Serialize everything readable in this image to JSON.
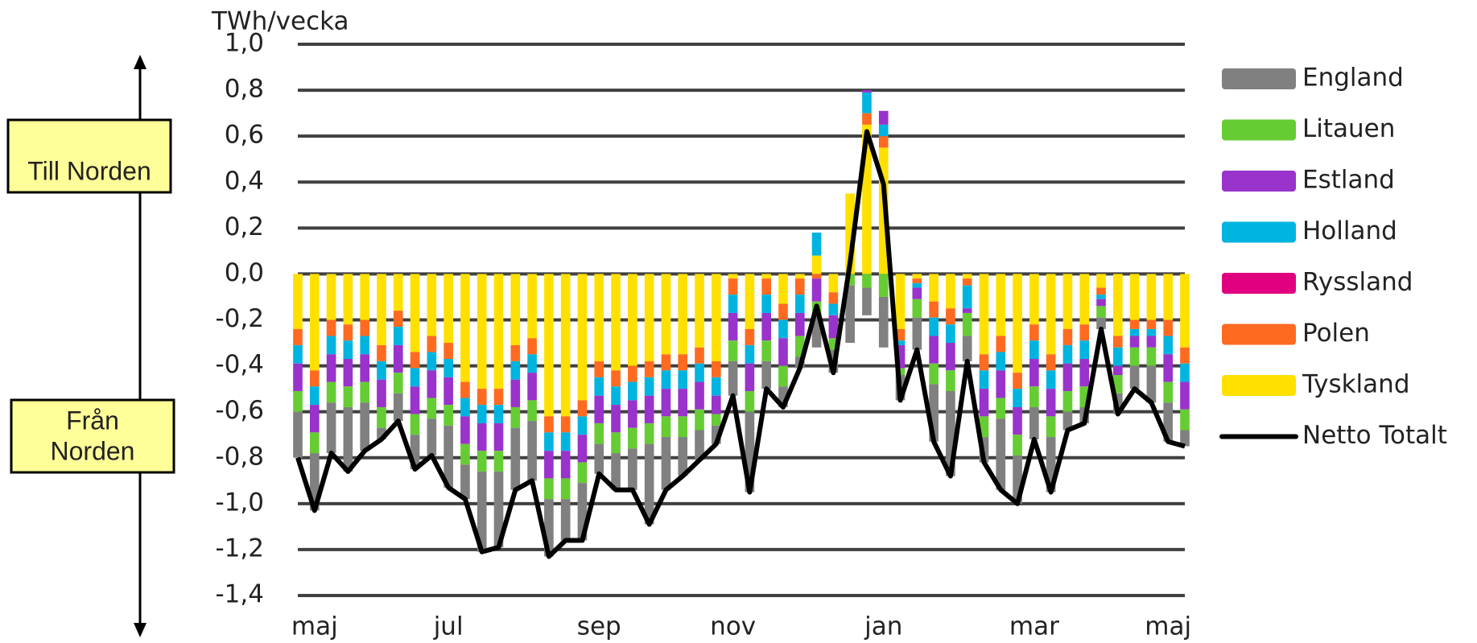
{
  "chart_data": {
    "type": "stacked_bar_line",
    "y_axis_label": "TWh/vecka",
    "annotations": {
      "up": "Till Norden",
      "down": [
        "Från",
        "Norden"
      ]
    },
    "categories": [
      null,
      "maj",
      null,
      null,
      null,
      null,
      null,
      null,
      null,
      "jul",
      null,
      null,
      null,
      null,
      null,
      null,
      null,
      null,
      "sep",
      null,
      null,
      null,
      null,
      null,
      null,
      null,
      "nov",
      null,
      null,
      null,
      null,
      null,
      null,
      null,
      null,
      "jan",
      null,
      null,
      null,
      null,
      null,
      null,
      null,
      null,
      "mar",
      null,
      null,
      null,
      null,
      null,
      null,
      null,
      "maj",
      null
    ],
    "ylim": [
      -1.4,
      1.0
    ],
    "yticks": [
      {
        "value": 1.0,
        "label": "1,0"
      },
      {
        "value": 0.8,
        "label": "0,8"
      },
      {
        "value": 0.6,
        "label": "0,6"
      },
      {
        "value": 0.4,
        "label": "0,4"
      },
      {
        "value": 0.2,
        "label": "0,2"
      },
      {
        "value": 0,
        "label": "0,0"
      },
      {
        "value": -0.2,
        "label": "-0,2"
      },
      {
        "value": -0.4,
        "label": "-0,4"
      },
      {
        "value": -0.6,
        "label": "-0,6"
      },
      {
        "value": -0.8,
        "label": "-0,8"
      },
      {
        "value": -1.0,
        "label": "-1,0"
      },
      {
        "value": -1.2,
        "label": "-1,2"
      },
      {
        "value": -1.4,
        "label": "-1,4"
      }
    ],
    "grid": true,
    "legend": "right",
    "series": [
      {
        "name": "England",
        "color": "#808080",
        "values": [
          -0.2,
          -0.25,
          -0.22,
          -0.28,
          -0.21,
          -0.05,
          -0.12,
          -0.15,
          -0.16,
          -0.27,
          -0.15,
          -0.35,
          -0.33,
          -0.27,
          -0.26,
          -0.25,
          -0.18,
          -0.25,
          -0.13,
          -0.16,
          -0.18,
          -0.35,
          -0.23,
          -0.17,
          -0.13,
          -0.08,
          -0.15,
          -0.35,
          -0.12,
          -0.09,
          -0.05,
          -0.15,
          -0.1,
          -0.25,
          -0.12,
          -0.22,
          -0.11,
          -0.14,
          -0.25,
          -0.37,
          -0.11,
          -0.11,
          -0.31,
          -0.21,
          -0.14,
          -0.24,
          -0.08,
          -0.07,
          -0.05,
          -0.09,
          -0.1,
          -0.16,
          -0.17,
          -0.07
        ]
      },
      {
        "name": "Litauen",
        "color": "#66cc33",
        "values": [
          -0.09,
          -0.09,
          -0.09,
          -0.09,
          -0.09,
          -0.09,
          -0.09,
          -0.09,
          -0.09,
          -0.09,
          -0.09,
          -0.09,
          -0.09,
          -0.09,
          -0.09,
          -0.09,
          -0.09,
          -0.09,
          -0.09,
          -0.09,
          -0.09,
          -0.09,
          -0.09,
          -0.09,
          -0.09,
          -0.05,
          -0.09,
          -0.09,
          -0.09,
          -0.09,
          -0.09,
          -0.05,
          -0.05,
          -0.05,
          -0.06,
          -0.1,
          -0.03,
          -0.08,
          -0.09,
          -0.09,
          -0.1,
          -0.09,
          -0.09,
          -0.09,
          -0.09,
          -0.09,
          -0.09,
          -0.09,
          -0.05,
          -0.08,
          -0.08,
          -0.08,
          -0.09,
          -0.09
        ]
      },
      {
        "name": "Estland",
        "color": "#9933cc",
        "values": [
          -0.12,
          -0.12,
          -0.12,
          -0.12,
          -0.12,
          -0.12,
          -0.12,
          -0.12,
          -0.12,
          -0.12,
          -0.12,
          -0.12,
          -0.12,
          -0.12,
          -0.12,
          -0.12,
          -0.12,
          -0.12,
          -0.12,
          -0.12,
          -0.12,
          -0.12,
          -0.12,
          -0.12,
          -0.12,
          -0.08,
          -0.12,
          -0.12,
          -0.12,
          -0.12,
          -0.1,
          -0.1,
          -0.1,
          0,
          0.01,
          0.06,
          -0.1,
          -0.05,
          -0.12,
          -0.12,
          -0.02,
          -0.12,
          -0.12,
          -0.12,
          -0.12,
          -0.12,
          -0.12,
          -0.12,
          -0.03,
          -0.04,
          -0.05,
          -0.05,
          -0.12,
          -0.12
        ]
      },
      {
        "name": "Holland",
        "color": "#00b4e0",
        "values": [
          -0.08,
          -0.08,
          -0.08,
          -0.08,
          -0.08,
          -0.08,
          -0.08,
          -0.08,
          -0.08,
          -0.08,
          -0.08,
          -0.08,
          -0.08,
          -0.08,
          -0.08,
          -0.08,
          -0.08,
          -0.08,
          -0.08,
          -0.08,
          -0.08,
          -0.08,
          -0.08,
          -0.08,
          -0.08,
          -0.08,
          -0.08,
          -0.08,
          -0.08,
          -0.08,
          -0.08,
          0.1,
          -0.05,
          0,
          0.09,
          0.05,
          -0.02,
          -0.02,
          -0.08,
          -0.08,
          -0.1,
          -0.08,
          -0.08,
          -0.08,
          -0.08,
          -0.08,
          -0.08,
          -0.08,
          -0.02,
          -0.08,
          -0.03,
          -0.03,
          -0.08,
          -0.08
        ]
      },
      {
        "name": "Ryssland",
        "color": "#e0007f",
        "values": [
          0,
          0,
          0,
          0,
          0,
          0,
          0,
          0,
          0,
          0,
          0,
          0,
          0,
          0,
          0,
          0,
          0,
          0,
          0,
          0,
          0,
          0,
          0,
          0,
          0,
          0,
          0,
          0,
          0,
          0,
          0,
          0,
          0,
          0,
          0,
          0,
          0,
          0,
          0,
          0,
          0,
          0,
          0,
          0,
          0,
          0,
          0,
          0,
          0,
          0,
          0,
          0,
          0,
          0
        ]
      },
      {
        "name": "Polen",
        "color": "#ff6a21",
        "values": [
          -0.07,
          -0.07,
          -0.07,
          -0.07,
          -0.07,
          -0.07,
          -0.07,
          -0.07,
          -0.07,
          -0.07,
          -0.07,
          -0.07,
          -0.07,
          -0.07,
          -0.07,
          -0.07,
          -0.07,
          -0.07,
          -0.07,
          -0.07,
          -0.07,
          -0.07,
          -0.07,
          -0.07,
          -0.07,
          -0.07,
          -0.07,
          -0.07,
          -0.07,
          -0.07,
          -0.07,
          -0.02,
          -0.05,
          0,
          0.05,
          0.05,
          -0.05,
          -0.02,
          -0.07,
          -0.07,
          -0.03,
          -0.07,
          -0.07,
          -0.07,
          -0.07,
          -0.07,
          -0.07,
          -0.07,
          -0.03,
          -0.05,
          -0.04,
          -0.04,
          -0.07,
          -0.07
        ]
      },
      {
        "name": "Tyskland",
        "color": "#ffe000",
        "values": [
          -0.24,
          -0.42,
          -0.2,
          -0.22,
          -0.2,
          -0.31,
          -0.16,
          -0.34,
          -0.27,
          -0.3,
          -0.47,
          -0.5,
          -0.5,
          -0.31,
          -0.28,
          -0.62,
          -0.62,
          -0.55,
          -0.38,
          -0.42,
          -0.4,
          -0.38,
          -0.35,
          -0.35,
          -0.32,
          -0.38,
          -0.02,
          -0.24,
          -0.02,
          -0.13,
          -0.02,
          0.08,
          -0.08,
          0.35,
          0.65,
          0.55,
          -0.24,
          -0.02,
          -0.12,
          -0.15,
          -0.02,
          -0.35,
          -0.27,
          -0.43,
          -0.22,
          -0.35,
          -0.24,
          -0.22,
          -0.06,
          -0.27,
          -0.2,
          -0.2,
          -0.2,
          -0.32
        ]
      }
    ],
    "line": {
      "name": "Netto Totalt",
      "color": "#000000",
      "values": [
        -0.8,
        -1.03,
        -0.78,
        -0.86,
        -0.77,
        -0.72,
        -0.64,
        -0.85,
        -0.79,
        -0.93,
        -0.98,
        -1.21,
        -1.19,
        -0.94,
        -0.9,
        -1.23,
        -1.16,
        -1.16,
        -0.87,
        -0.94,
        -0.94,
        -1.09,
        -0.94,
        -0.88,
        -0.81,
        -0.74,
        -0.53,
        -0.95,
        -0.5,
        -0.58,
        -0.41,
        -0.14,
        -0.43,
        0.05,
        0.62,
        0.39,
        -0.55,
        -0.33,
        -0.73,
        -0.88,
        -0.38,
        -0.82,
        -0.94,
        -1.0,
        -0.72,
        -0.95,
        -0.68,
        -0.65,
        -0.24,
        -0.61,
        -0.5,
        -0.56,
        -0.73,
        -0.75
      ]
    }
  }
}
